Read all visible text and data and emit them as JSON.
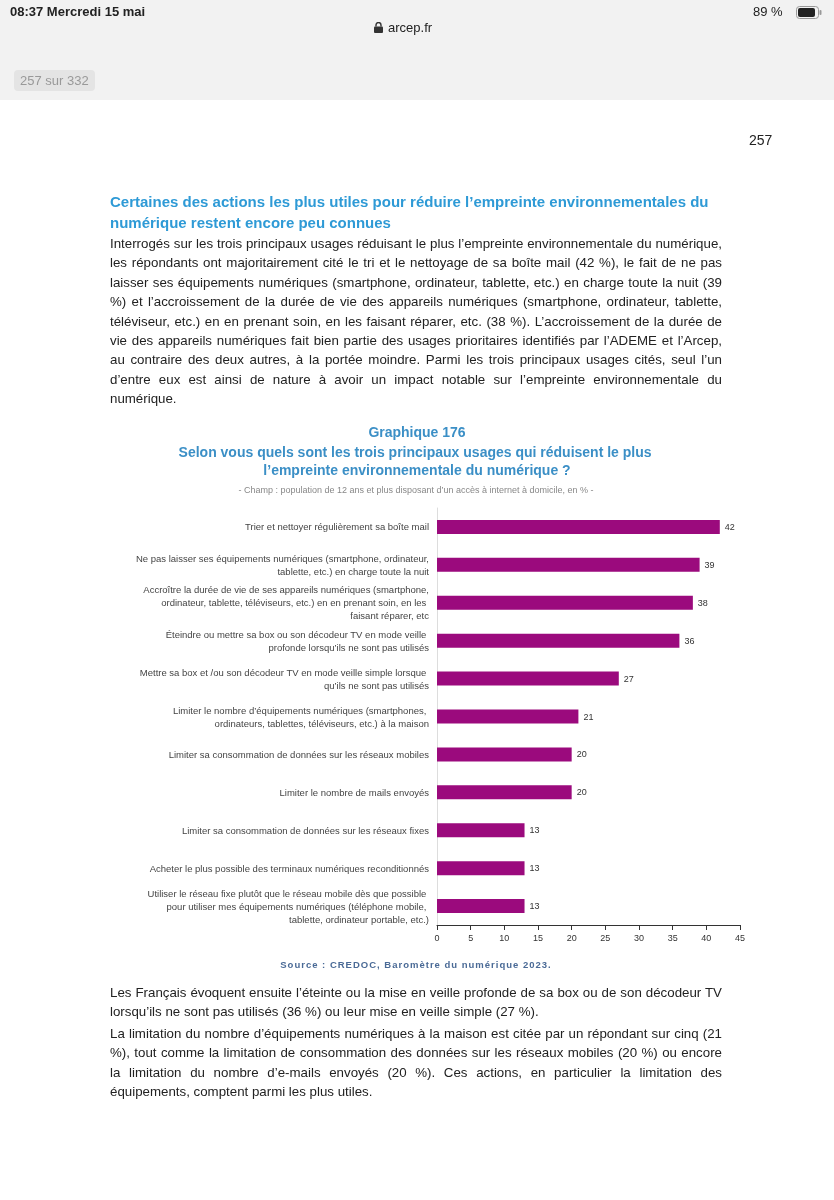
{
  "chart_data": {
    "type": "bar",
    "orientation": "horizontal",
    "title": "Graphique 176",
    "subtitle": "Selon vous quels sont les trois principaux usages qui réduisent le plus l’empreinte environnementale du numérique ?",
    "categories": [
      "Trier et nettoyer régulièrement sa boîte mail",
      "Ne pas laisser ses équipements numériques (smartphone, ordinateur, tablette, etc.) en charge toute la nuit",
      "Accroître la durée de vie de ses appareils numériques (smartphone, ordinateur, tablette, téléviseurs, etc.) en en prenant soin, en les faisant réparer, etc",
      "Éteindre ou mettre sa box ou son décodeur TV en mode veille profonde lorsqu’ils ne sont pas utilisés",
      "Mettre sa box et /ou son décodeur TV en mode veille simple lorsque qu’ils ne sont pas utilisés",
      "Limiter le nombre d’équipements numériques (smartphones, ordinateurs, tablettes, téléviseurs, etc.) à la maison",
      "Limiter sa consommation de données sur les réseaux mobiles",
      "Limiter le nombre de mails envoyés",
      "Limiter sa consommation de données sur les réseaux fixes",
      "Acheter le plus possible des terminaux numériques reconditionnés",
      "Utiliser le réseau fixe plutôt que le réseau mobile dès que possible pour utiliser mes équipements numériques (téléphone mobile, tablette, ordinateur portable, etc.)"
    ],
    "values": [
      42,
      39,
      38,
      36,
      27,
      21,
      20,
      20,
      13,
      13,
      13
    ],
    "color": "#9b0a7d",
    "xlim": [
      0,
      45
    ],
    "xticks": [
      0,
      5,
      10,
      15,
      20,
      25,
      30,
      35,
      40,
      45
    ],
    "data_labels": true,
    "annotations": [
      "08:37  Mercredi 15 mai",
      "arcep.fr",
      "89 %",
      "257 sur 332",
      "257",
      "Certaines des actions les plus utiles pour réduire l’empreinte environnementales du numérique restent encore peu connues",
      "Interrogés sur les trois principaux usages réduisant le plus l’empreinte environnementale du numérique, les répondants ont majoritairement cité le tri et le nettoyage de sa boîte mail (42 %), le fait de ne pas laisser ses équipements numériques (smartphone, ordinateur, tablette, etc.) en charge toute la nuit (39 %) et l’accroissement de la durée de vie des appareils numériques (smartphone, ordinateur, tablette, téléviseur, etc.) en en prenant soin, en les faisant réparer, etc. (38 %). L’accroissement de la durée de vie des appareils numériques fait bien partie des usages prioritaires identifiés par l’ADEME et l’Arcep, au contraire des deux autres, à la portée moindre. Parmi les trois principaux usages cités, seul l’un d’entre eux est ainsi de nature à avoir un impact notable sur l’empreinte environnementale du numérique.",
      "- Champ : population de 12 ans et plus disposant d’un accès à internet à domicile, en % -",
      "Source : CREDOC, Baromètre du numérique 2023.",
      "Les Français évoquent ensuite l’éteinte ou la mise en veille profonde de sa box ou de son décodeur TV lorsqu’ils ne sont pas utilisés (36 %) ou leur mise en veille simple (27 %).",
      "La limitation du nombre d’équipements numériques à la maison est citée par un répondant sur cinq (21 %), tout comme la limitation de consommation des données sur les réseaux mobiles (20 %) ou encore la limitation du nombre d’e-mails envoyés (20 %). Ces actions, en particulier la limitation des équipements, comptent parmi les plus utiles."
    ]
  }
}
